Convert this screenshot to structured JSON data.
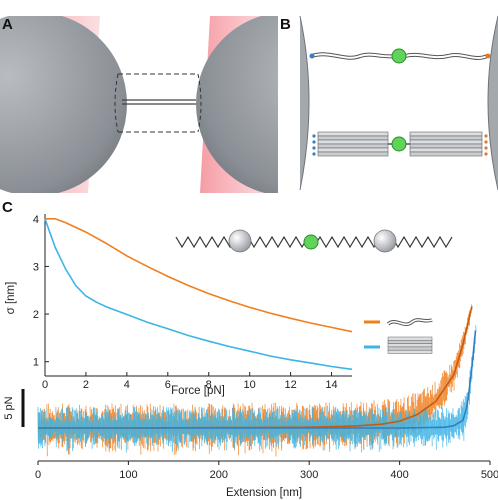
{
  "panel_labels": {
    "a": "A",
    "b": "B",
    "c": "C"
  },
  "colors": {
    "orange": "#f07f1e",
    "blue": "#3cb4e6",
    "trace_blue_dark": "#2f7fc0",
    "trace_orange_dark": "#c85a10",
    "bead_grey": "#8e9398",
    "laser_pink": "#f5a0a8",
    "green": "#5fd35a"
  },
  "chart_data": [
    {
      "type": "line",
      "xlabel": "Force [pN]",
      "ylabel": "σ [nm]",
      "xlim": [
        0,
        15
      ],
      "ylim": [
        0.7,
        4.1
      ],
      "xticks": [
        0,
        2,
        4,
        6,
        8,
        10,
        12,
        14
      ],
      "yticks": [
        1,
        2,
        3,
        4
      ],
      "series": [
        {
          "color": "orange",
          "x": [
            0,
            0.5,
            1,
            2,
            3,
            4,
            5,
            6,
            7,
            8,
            9,
            10,
            11,
            12,
            13,
            14,
            15
          ],
          "y": [
            4.0,
            4.0,
            3.92,
            3.72,
            3.48,
            3.22,
            3.0,
            2.79,
            2.6,
            2.43,
            2.28,
            2.14,
            2.02,
            1.91,
            1.81,
            1.72,
            1.63
          ]
        },
        {
          "color": "blue",
          "x": [
            0,
            0.5,
            1,
            1.5,
            2,
            2.5,
            3,
            4,
            5,
            6,
            7,
            8,
            9,
            10,
            11,
            12,
            13,
            14,
            15
          ],
          "y": [
            4.0,
            3.4,
            2.95,
            2.6,
            2.38,
            2.25,
            2.15,
            1.99,
            1.83,
            1.69,
            1.55,
            1.43,
            1.32,
            1.22,
            1.12,
            1.04,
            0.97,
            0.9,
            0.84
          ]
        }
      ],
      "legend": "right"
    },
    {
      "type": "line",
      "xlabel": "Extension [nm]",
      "ylabel": "",
      "xlim": [
        0,
        500
      ],
      "xticks": [
        0,
        100,
        200,
        300,
        400,
        500
      ],
      "scale_bar": "5 pN",
      "series": [
        {
          "color": "orange",
          "x": [
            0,
            100,
            200,
            300,
            350,
            380,
            400,
            420,
            440,
            460,
            470,
            480
          ],
          "y": [
            0,
            0,
            0.05,
            0.1,
            0.25,
            0.5,
            0.9,
            1.8,
            3.5,
            7,
            11,
            16
          ]
        },
        {
          "color": "blue",
          "x": [
            0,
            100,
            200,
            300,
            400,
            450,
            460,
            470,
            475,
            480,
            485
          ],
          "y": [
            0,
            0,
            0,
            0,
            0,
            0.1,
            0.3,
            1.0,
            3,
            8,
            14
          ]
        }
      ]
    }
  ]
}
